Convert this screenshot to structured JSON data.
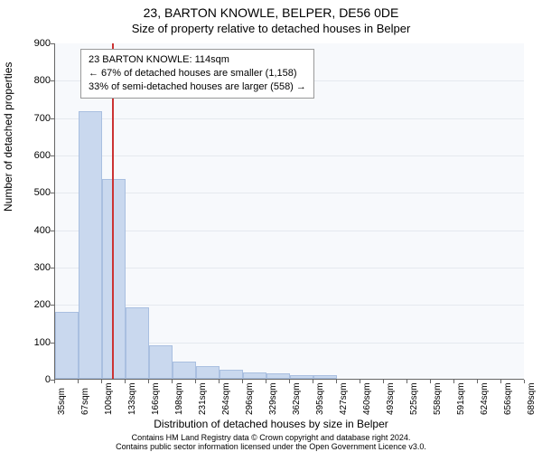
{
  "title_line1": "23, BARTON KNOWLE, BELPER, DE56 0DE",
  "title_line2": "Size of property relative to detached houses in Belper",
  "yaxis_label": "Number of detached properties",
  "xaxis_label": "Distribution of detached houses by size in Belper",
  "footer_line1": "Contains HM Land Registry data © Crown copyright and database right 2024.",
  "footer_line2": "Contains public sector information licensed under the Open Government Licence v3.0.",
  "callout": {
    "line1": "23 BARTON KNOWLE: 114sqm",
    "line2": "← 67% of detached houses are smaller (1,158)",
    "line3": "33% of semi-detached houses are larger (558) →"
  },
  "chart": {
    "type": "histogram",
    "background_color": "#f7f9fc",
    "grid_color": "#e5e9ef",
    "axis_color": "#666666",
    "bar_fill": "#c9d8ee",
    "bar_border": "#a9bfe0",
    "marker_color": "#cc3333",
    "marker_x_value": 114,
    "ylim": [
      0,
      900
    ],
    "ytick_step": 100,
    "x_start": 35,
    "x_step": 32.65,
    "x_labels": [
      "35sqm",
      "67sqm",
      "100sqm",
      "133sqm",
      "166sqm",
      "198sqm",
      "231sqm",
      "264sqm",
      "296sqm",
      "329sqm",
      "362sqm",
      "395sqm",
      "427sqm",
      "460sqm",
      "493sqm",
      "525sqm",
      "558sqm",
      "591sqm",
      "624sqm",
      "656sqm",
      "689sqm"
    ],
    "values": [
      180,
      715,
      535,
      190,
      90,
      45,
      35,
      25,
      18,
      14,
      10,
      10,
      0,
      0,
      0,
      0,
      0,
      0,
      0,
      0
    ],
    "title_fontsize": 14,
    "subtitle_fontsize": 13,
    "axis_label_fontsize": 12,
    "tick_fontsize": 11,
    "xtick_fontsize": 10,
    "callout_fontsize": 11,
    "footer_fontsize": 9
  }
}
